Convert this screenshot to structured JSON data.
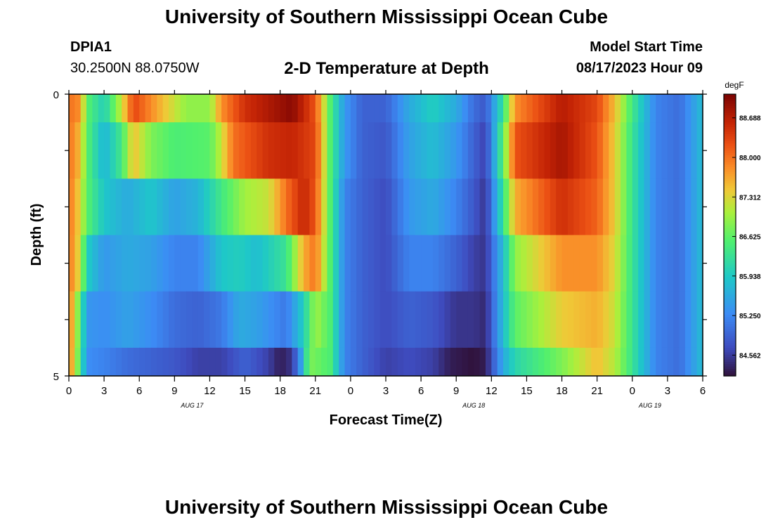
{
  "header": {
    "title": "University of Southern Mississippi Ocean Cube",
    "station_id": "DPIA1",
    "station_coords": "30.2500N  88.0750W",
    "plot_title": "2-D Temperature at Depth",
    "model_start_label": "Model Start Time",
    "model_start_value": "08/17/2023 Hour 09"
  },
  "footer": {
    "title": "University of Southern Mississippi Ocean Cube"
  },
  "chart_data": {
    "type": "heatmap",
    "title": "2-D Temperature at Depth",
    "xlabel": "Forecast Time(Z)",
    "ylabel": "Depth (ft)",
    "x_tick_labels": [
      "0",
      "3",
      "6",
      "9",
      "12",
      "15",
      "18",
      "21",
      "0",
      "3",
      "6",
      "9",
      "12",
      "15",
      "18",
      "21",
      "0",
      "3",
      "6"
    ],
    "date_labels": [
      {
        "text": "AUG 17",
        "at_tick": 3.5
      },
      {
        "text": "AUG 18",
        "at_tick": 11.5
      },
      {
        "text": "AUG 19",
        "at_tick": 16.5
      }
    ],
    "x_range_hours": [
      0,
      54
    ],
    "y_tick_labels": [
      "0",
      "5"
    ],
    "ylim": [
      0,
      5
    ],
    "colorbar": {
      "unit": "degF",
      "ticks": [
        "88.688",
        "88.000",
        "87.312",
        "86.625",
        "85.938",
        "85.250",
        "84.562"
      ],
      "min": 84.2,
      "max": 89.1
    },
    "rows": [
      {
        "depth_range": [
          0,
          0.5
        ],
        "knots": [
          [
            0,
            88.0
          ],
          [
            1,
            87.8
          ],
          [
            1.5,
            86.6
          ],
          [
            3,
            86.0
          ],
          [
            4.5,
            87.2
          ],
          [
            5.5,
            88.3
          ],
          [
            6.5,
            88.0
          ],
          [
            8,
            87.5
          ],
          [
            10,
            86.9
          ],
          [
            12,
            86.9
          ],
          [
            13,
            87.8
          ],
          [
            15,
            88.5
          ],
          [
            19,
            89.0
          ],
          [
            21,
            88.2
          ],
          [
            22.3,
            86.5
          ],
          [
            23.5,
            85.4
          ],
          [
            25,
            84.9
          ],
          [
            27,
            84.9
          ],
          [
            29,
            85.6
          ],
          [
            31,
            86.0
          ],
          [
            33,
            85.6
          ],
          [
            34.5,
            85.0
          ],
          [
            35.5,
            84.8
          ],
          [
            37,
            86.3
          ],
          [
            38,
            87.8
          ],
          [
            42,
            88.7
          ],
          [
            45,
            88.3
          ],
          [
            46.5,
            87.5
          ],
          [
            48,
            86.4
          ],
          [
            50,
            85.2
          ],
          [
            52,
            85.0
          ],
          [
            54,
            85.8
          ]
        ]
      },
      {
        "depth_range": [
          0.5,
          1.5
        ],
        "knots": [
          [
            0,
            88.0
          ],
          [
            1,
            87.5
          ],
          [
            1.5,
            86.6
          ],
          [
            3,
            85.7
          ],
          [
            4.5,
            86.4
          ],
          [
            5.5,
            87.5
          ],
          [
            7,
            86.8
          ],
          [
            9,
            86.5
          ],
          [
            12,
            86.6
          ],
          [
            13,
            87.2
          ],
          [
            14,
            88.0
          ],
          [
            17,
            88.5
          ],
          [
            19,
            88.6
          ],
          [
            21,
            88.3
          ],
          [
            22.3,
            86.5
          ],
          [
            23.5,
            85.4
          ],
          [
            25,
            84.9
          ],
          [
            27,
            84.8
          ],
          [
            29,
            85.5
          ],
          [
            31,
            85.8
          ],
          [
            33,
            85.4
          ],
          [
            34.5,
            84.9
          ],
          [
            35.5,
            84.6
          ],
          [
            37,
            86.6
          ],
          [
            38,
            88.2
          ],
          [
            42,
            88.8
          ],
          [
            45,
            88.2
          ],
          [
            46.5,
            87.4
          ],
          [
            48,
            86.3
          ],
          [
            50,
            85.2
          ],
          [
            52,
            85.0
          ],
          [
            54,
            85.8
          ]
        ]
      },
      {
        "depth_range": [
          1.5,
          2.5
        ],
        "knots": [
          [
            0,
            88.0
          ],
          [
            1,
            87.3
          ],
          [
            1.5,
            86.6
          ],
          [
            3,
            85.9
          ],
          [
            5,
            85.6
          ],
          [
            7,
            85.9
          ],
          [
            9,
            85.5
          ],
          [
            11,
            85.7
          ],
          [
            13,
            86.4
          ],
          [
            15,
            87.0
          ],
          [
            17,
            87.2
          ],
          [
            18.5,
            88.0
          ],
          [
            20,
            88.6
          ],
          [
            21,
            88.2
          ],
          [
            22.3,
            86.5
          ],
          [
            23.5,
            85.2
          ],
          [
            25,
            84.9
          ],
          [
            27,
            84.7
          ],
          [
            29,
            85.4
          ],
          [
            31,
            85.6
          ],
          [
            33,
            85.2
          ],
          [
            34.5,
            84.8
          ],
          [
            35.5,
            84.5
          ],
          [
            37,
            86.3
          ],
          [
            38,
            87.6
          ],
          [
            42,
            88.5
          ],
          [
            45,
            88.1
          ],
          [
            46.5,
            87.4
          ],
          [
            48,
            86.3
          ],
          [
            50,
            85.2
          ],
          [
            52,
            85.0
          ],
          [
            54,
            85.8
          ]
        ]
      },
      {
        "depth_range": [
          2.5,
          3.5
        ],
        "knots": [
          [
            0,
            88.0
          ],
          [
            1,
            87.2
          ],
          [
            1.5,
            86.0
          ],
          [
            3,
            85.4
          ],
          [
            5,
            85.6
          ],
          [
            7,
            85.5
          ],
          [
            9,
            85.2
          ],
          [
            11,
            85.2
          ],
          [
            13,
            85.9
          ],
          [
            14.5,
            86.0
          ],
          [
            16,
            85.8
          ],
          [
            18.5,
            86.3
          ],
          [
            20,
            87.6
          ],
          [
            21,
            88.0
          ],
          [
            22.3,
            86.5
          ],
          [
            23.5,
            85.2
          ],
          [
            25,
            84.9
          ],
          [
            27,
            84.7
          ],
          [
            29,
            85.2
          ],
          [
            31,
            85.2
          ],
          [
            33,
            84.9
          ],
          [
            34.5,
            84.6
          ],
          [
            35.5,
            84.5
          ],
          [
            37,
            85.8
          ],
          [
            38,
            86.9
          ],
          [
            42,
            87.8
          ],
          [
            45,
            87.8
          ],
          [
            46.5,
            87.3
          ],
          [
            48,
            86.3
          ],
          [
            50,
            85.2
          ],
          [
            52,
            85.0
          ],
          [
            54,
            85.8
          ]
        ]
      },
      {
        "depth_range": [
          3.5,
          4.5
        ],
        "knots": [
          [
            0,
            88.0
          ],
          [
            1,
            86.5
          ],
          [
            1.5,
            85.4
          ],
          [
            3,
            85.3
          ],
          [
            5,
            85.5
          ],
          [
            7,
            85.3
          ],
          [
            9,
            85.0
          ],
          [
            11,
            84.9
          ],
          [
            13,
            85.1
          ],
          [
            14.5,
            85.6
          ],
          [
            16,
            85.5
          ],
          [
            18.5,
            85.1
          ],
          [
            20,
            86.0
          ],
          [
            21,
            87.0
          ],
          [
            22.3,
            86.5
          ],
          [
            23.5,
            85.2
          ],
          [
            25,
            84.9
          ],
          [
            27,
            84.7
          ],
          [
            29,
            84.9
          ],
          [
            31,
            84.8
          ],
          [
            33,
            84.5
          ],
          [
            34.5,
            84.5
          ],
          [
            35.5,
            84.4
          ],
          [
            37,
            85.8
          ],
          [
            38,
            86.6
          ],
          [
            42,
            87.4
          ],
          [
            45,
            87.6
          ],
          [
            46.5,
            87.2
          ],
          [
            48,
            86.3
          ],
          [
            50,
            85.2
          ],
          [
            52,
            85.0
          ],
          [
            54,
            85.8
          ]
        ]
      },
      {
        "depth_range": [
          4.5,
          5
        ],
        "knots": [
          [
            0,
            88.0
          ],
          [
            1,
            86.4
          ],
          [
            1.5,
            85.3
          ],
          [
            3,
            85.2
          ],
          [
            5,
            85.0
          ],
          [
            7,
            84.9
          ],
          [
            9,
            84.8
          ],
          [
            11,
            84.6
          ],
          [
            13,
            84.6
          ],
          [
            15,
            84.9
          ],
          [
            17,
            84.6
          ],
          [
            18,
            84.3
          ],
          [
            19,
            84.5
          ],
          [
            19.8,
            85.5
          ],
          [
            20.5,
            86.8
          ],
          [
            22.3,
            86.5
          ],
          [
            23.5,
            85.2
          ],
          [
            25,
            84.9
          ],
          [
            27,
            84.6
          ],
          [
            29,
            84.7
          ],
          [
            31,
            84.6
          ],
          [
            32.5,
            84.3
          ],
          [
            34.5,
            84.2
          ],
          [
            35.5,
            84.3
          ],
          [
            37,
            85.6
          ],
          [
            38,
            86.1
          ],
          [
            42,
            86.8
          ],
          [
            45,
            87.5
          ],
          [
            46.5,
            87.1
          ],
          [
            48,
            86.3
          ],
          [
            50,
            85.2
          ],
          [
            52,
            85.0
          ],
          [
            54,
            85.8
          ]
        ]
      }
    ]
  }
}
